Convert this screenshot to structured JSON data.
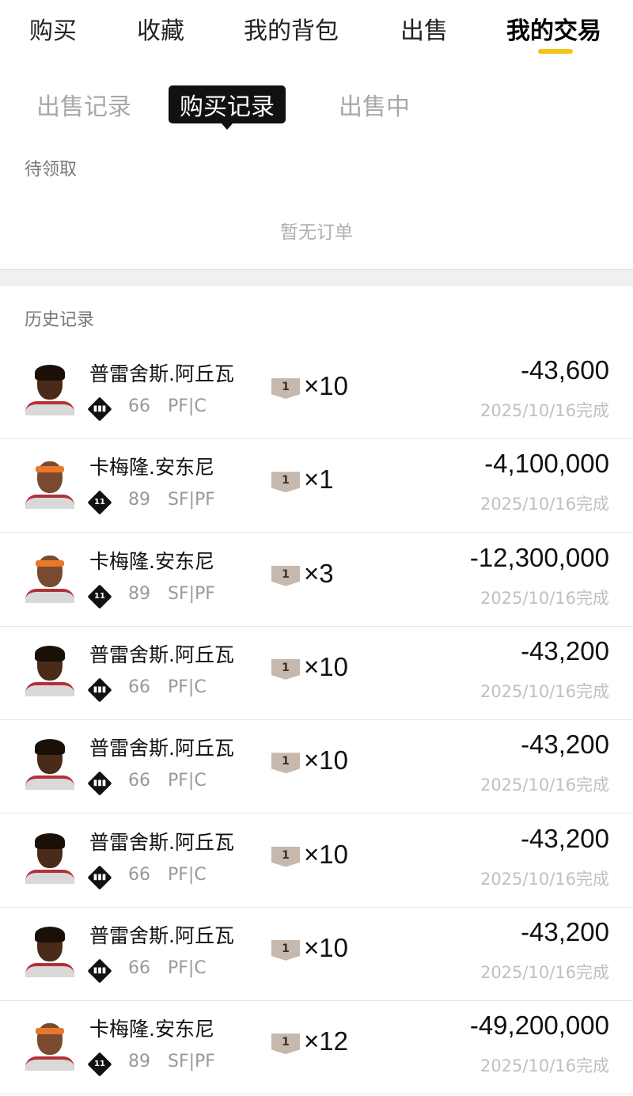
{
  "top_tabs": [
    "购买",
    "收藏",
    "我的背包",
    "出售",
    "我的交易"
  ],
  "active_top_tab": "我的交易",
  "accent_color": "#f5c518",
  "sub_tabs": [
    "出售记录",
    "购买记录",
    "出售中"
  ],
  "active_sub_tab": "购买记录",
  "pending": {
    "title": "待领取",
    "empty_text": "暂无订单"
  },
  "history": {
    "title": "历史记录",
    "rows": [
      {
        "name": "普雷舍斯.阿丘瓦",
        "badge": "bars",
        "ovr": "66",
        "pos": "PF|C",
        "tier": "1",
        "qty": "×10",
        "price": "-43,600",
        "date": "2025/10/16完成",
        "avatar": "player-a"
      },
      {
        "name": "卡梅隆.安东尼",
        "badge": "11",
        "ovr": "89",
        "pos": "SF|PF",
        "tier": "1",
        "qty": "×1",
        "price": "-4,100,000",
        "date": "2025/10/16完成",
        "avatar": "player-b"
      },
      {
        "name": "卡梅隆.安东尼",
        "badge": "11",
        "ovr": "89",
        "pos": "SF|PF",
        "tier": "1",
        "qty": "×3",
        "price": "-12,300,000",
        "date": "2025/10/16完成",
        "avatar": "player-b"
      },
      {
        "name": "普雷舍斯.阿丘瓦",
        "badge": "bars",
        "ovr": "66",
        "pos": "PF|C",
        "tier": "1",
        "qty": "×10",
        "price": "-43,200",
        "date": "2025/10/16完成",
        "avatar": "player-a"
      },
      {
        "name": "普雷舍斯.阿丘瓦",
        "badge": "bars",
        "ovr": "66",
        "pos": "PF|C",
        "tier": "1",
        "qty": "×10",
        "price": "-43,200",
        "date": "2025/10/16完成",
        "avatar": "player-a"
      },
      {
        "name": "普雷舍斯.阿丘瓦",
        "badge": "bars",
        "ovr": "66",
        "pos": "PF|C",
        "tier": "1",
        "qty": "×10",
        "price": "-43,200",
        "date": "2025/10/16完成",
        "avatar": "player-a"
      },
      {
        "name": "普雷舍斯.阿丘瓦",
        "badge": "bars",
        "ovr": "66",
        "pos": "PF|C",
        "tier": "1",
        "qty": "×10",
        "price": "-43,200",
        "date": "2025/10/16完成",
        "avatar": "player-a"
      },
      {
        "name": "卡梅隆.安东尼",
        "badge": "11",
        "ovr": "89",
        "pos": "SF|PF",
        "tier": "1",
        "qty": "×12",
        "price": "-49,200,000",
        "date": "2025/10/16完成",
        "avatar": "player-b"
      }
    ]
  }
}
